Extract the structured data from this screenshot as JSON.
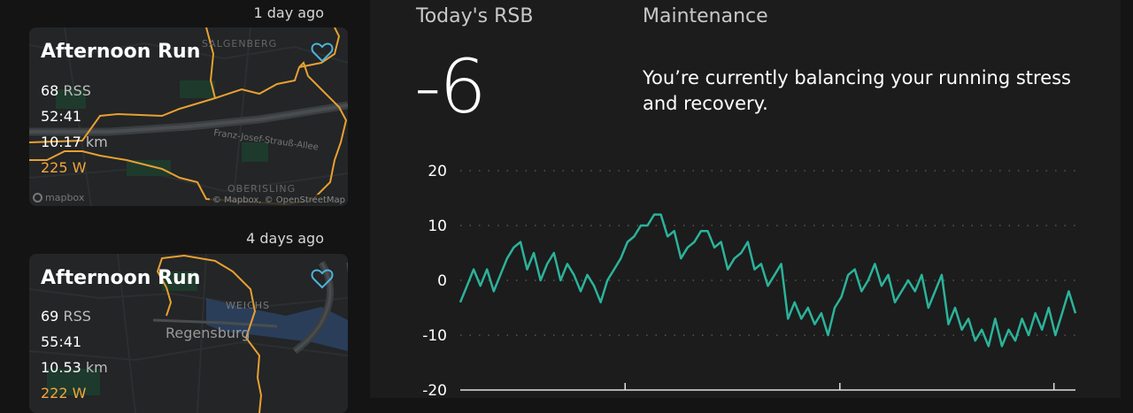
{
  "activities": [
    {
      "ago": "1 day ago",
      "title": "Afternoon Run",
      "rss_value": "68",
      "rss_unit": "RSS",
      "duration": "52:41",
      "distance_value": "10.17",
      "distance_unit": "km",
      "power_value": "225",
      "power_unit": "W",
      "map_labels": [
        "SALGENBERG",
        "Franz-Josef-Strauß-Allee",
        "OBERISLING"
      ],
      "map_attribution": "© Mapbox, © OpenStreetMap",
      "map_logo": "mapbox"
    },
    {
      "ago": "4 days ago",
      "title": "Afternoon Run",
      "rss_value": "69",
      "rss_unit": "RSS",
      "duration": "55:41",
      "distance_value": "10.53",
      "distance_unit": "km",
      "power_value": "222",
      "power_unit": "W",
      "map_labels": [
        "WEICHS",
        "Regensburg"
      ]
    }
  ],
  "rsb": {
    "label": "Today's RSB",
    "value": "-6",
    "status_label": "Maintenance",
    "status_description": "You’re currently balancing your running stress and recovery."
  },
  "colors": {
    "accent_line": "#2bb39a",
    "route": "#e8a030",
    "power": "#f2a73b",
    "heart": "#4fb3d9"
  },
  "icons": {
    "favorite": "heart-outline-icon",
    "map_logo": "mapbox-logo-icon"
  },
  "chart_data": {
    "type": "line",
    "y_ticks": [
      "20",
      "10",
      "0",
      "-10",
      "-20"
    ],
    "ylim": [
      -20,
      20
    ],
    "grid": "horizontal dotted",
    "series": [
      {
        "values": [
          -4,
          -1,
          2,
          -1,
          2,
          -2,
          1,
          4,
          6,
          7,
          2,
          5,
          0,
          3,
          5,
          0,
          3,
          1,
          -2,
          1,
          -1,
          -4,
          0,
          2,
          4,
          7,
          8,
          10,
          10,
          12,
          12,
          8,
          9,
          4,
          6,
          7,
          9,
          9,
          6,
          7,
          2,
          4,
          5,
          7,
          2,
          3,
          -1,
          1,
          3,
          -7,
          -4,
          -7,
          -5,
          -8,
          -6,
          -10,
          -5,
          -3,
          1,
          2,
          -2,
          0,
          3,
          -1,
          1,
          -4,
          -2,
          0,
          -2,
          1,
          -5,
          -2,
          1,
          -8,
          -5,
          -9,
          -7,
          -11,
          -9,
          -12,
          -7,
          -12,
          -9,
          -11,
          -7,
          -10,
          -6,
          -9,
          -5,
          -10,
          -6,
          -2,
          -6
        ]
      }
    ]
  }
}
